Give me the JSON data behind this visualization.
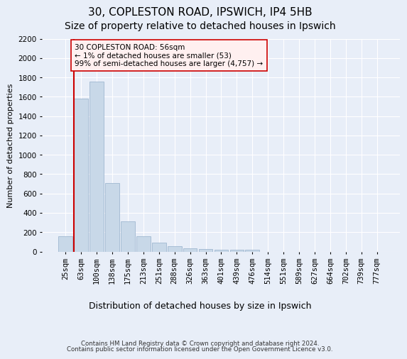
{
  "title1": "30, COPLESTON ROAD, IPSWICH, IP4 5HB",
  "title2": "Size of property relative to detached houses in Ipswich",
  "xlabel": "Distribution of detached houses by size in Ipswich",
  "ylabel": "Number of detached properties",
  "categories": [
    "25sqm",
    "63sqm",
    "100sqm",
    "138sqm",
    "175sqm",
    "213sqm",
    "251sqm",
    "288sqm",
    "326sqm",
    "363sqm",
    "401sqm",
    "439sqm",
    "476sqm",
    "514sqm",
    "551sqm",
    "589sqm",
    "627sqm",
    "664sqm",
    "702sqm",
    "739sqm",
    "777sqm"
  ],
  "values": [
    160,
    1580,
    1760,
    710,
    315,
    160,
    90,
    55,
    35,
    25,
    20,
    20,
    20,
    0,
    0,
    0,
    0,
    0,
    0,
    0,
    0
  ],
  "bar_color": "#c8d8e8",
  "bar_edgecolor": "#a0b8d0",
  "highlight_line_color": "#cc0000",
  "annotation_text": "30 COPLESTON ROAD: 56sqm\n← 1% of detached houses are smaller (53)\n99% of semi-detached houses are larger (4,757) →",
  "annotation_box_facecolor": "#fff0f0",
  "annotation_box_edgecolor": "#cc0000",
  "ylim": [
    0,
    2200
  ],
  "yticks": [
    0,
    200,
    400,
    600,
    800,
    1000,
    1200,
    1400,
    1600,
    1800,
    2000,
    2200
  ],
  "background_color": "#e8eef8",
  "grid_color": "#ffffff",
  "footer1": "Contains HM Land Registry data © Crown copyright and database right 2024.",
  "footer2": "Contains public sector information licensed under the Open Government Licence v3.0.",
  "title1_fontsize": 11,
  "title2_fontsize": 10,
  "xlabel_fontsize": 9,
  "ylabel_fontsize": 8,
  "tick_fontsize": 7.5
}
